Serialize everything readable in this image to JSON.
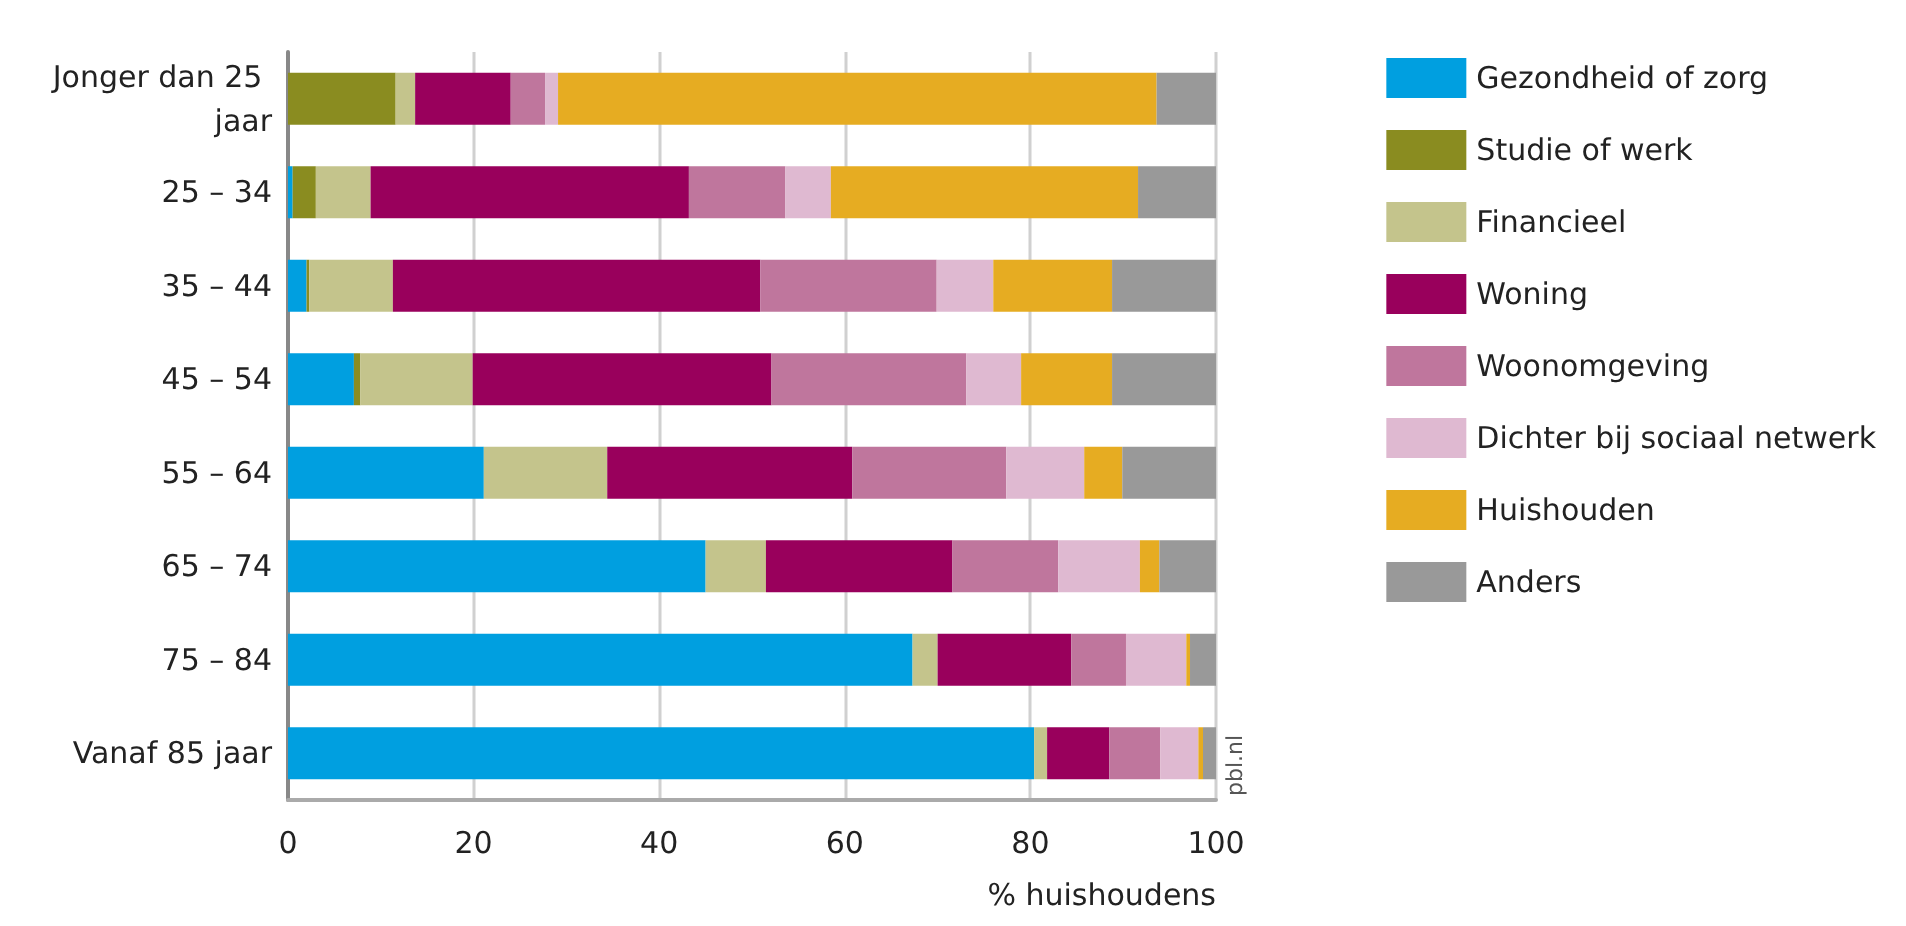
{
  "chart_data": {
    "type": "bar",
    "orientation": "horizontal",
    "stacked": true,
    "xlabel": "% huishoudens",
    "annotations": [
      "pbl.nl"
    ],
    "categories": [
      "Jonger dan 25 jaar",
      "25 – 34",
      "35 – 44",
      "45 – 54",
      "55 – 64",
      "65 – 74",
      "75 – 84",
      "Vanaf 85 jaar"
    ],
    "series": [
      {
        "name": "Gezondheid of zorg",
        "color": "#009fe0",
        "values": [
          0,
          0.5,
          2.0,
          7.1,
          21.1,
          45.0,
          67.3,
          80.4
        ]
      },
      {
        "name": "Studie of werk",
        "color": "#8a8c20",
        "values": [
          11.6,
          2.5,
          0.3,
          0.7,
          0,
          0,
          0,
          0
        ]
      },
      {
        "name": "Financieel",
        "color": "#c4c48c",
        "values": [
          2.1,
          5.9,
          9.0,
          12.1,
          13.3,
          6.5,
          2.7,
          1.4
        ]
      },
      {
        "name": "Woning",
        "color": "#99005c",
        "values": [
          10.3,
          34.3,
          39.6,
          32.2,
          26.4,
          20.1,
          14.4,
          6.7
        ]
      },
      {
        "name": "Woonomgeving",
        "color": "#bf769d",
        "values": [
          3.7,
          10.4,
          19.0,
          21.0,
          16.6,
          11.4,
          5.9,
          5.5
        ]
      },
      {
        "name": "Dichter bij sociaal netwerk",
        "color": "#dfb9d1",
        "values": [
          1.4,
          4.9,
          6.1,
          5.9,
          8.4,
          8.8,
          6.5,
          4.1
        ]
      },
      {
        "name": "Huishouden",
        "color": "#e6ac22",
        "values": [
          64.5,
          33.1,
          12.8,
          9.8,
          4.1,
          2.1,
          0.4,
          0.5
        ]
      },
      {
        "name": "Anders",
        "color": "#999999",
        "values": [
          6.4,
          8.4,
          11.2,
          11.2,
          10.1,
          6.1,
          2.8,
          1.4
        ]
      }
    ],
    "xlim": [
      0,
      100
    ],
    "xticks": [
      0,
      20,
      40,
      60,
      80,
      100
    ],
    "grid": "x",
    "legend": "right"
  }
}
